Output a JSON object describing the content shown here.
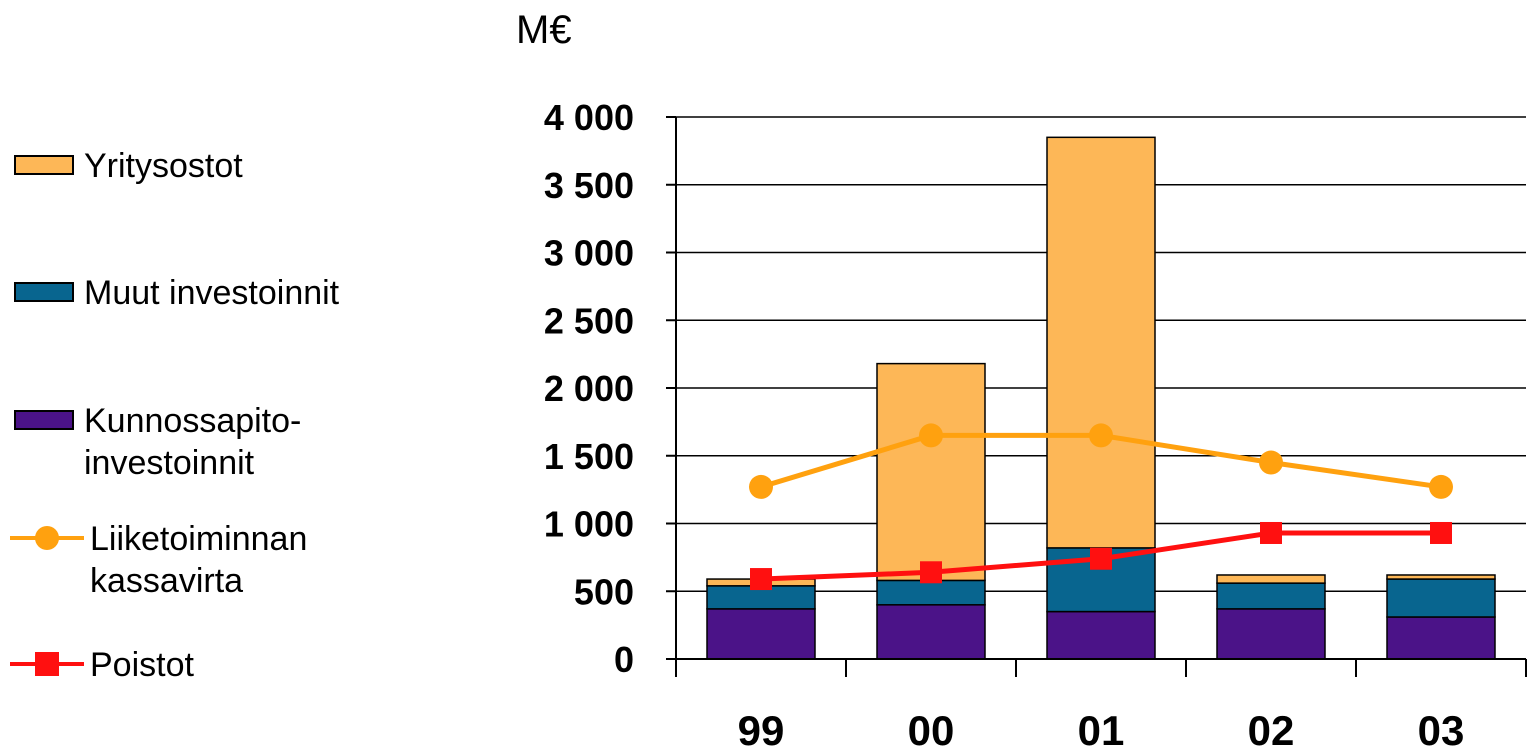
{
  "chart_data": {
    "type": "bar",
    "stacked": true,
    "unit_label": "M€",
    "categories": [
      "99",
      "00",
      "01",
      "02",
      "03"
    ],
    "ylim": [
      0,
      4000
    ],
    "yticks": [
      "0",
      "500",
      "1 000",
      "1 500",
      "2 000",
      "2 500",
      "3 000",
      "3 500",
      "4 000"
    ],
    "ytick_values": [
      0,
      500,
      1000,
      1500,
      2000,
      2500,
      3000,
      3500,
      4000
    ],
    "grid": true,
    "legend_position": "left",
    "series": [
      {
        "name": "Kunnossapito-\ninvestoinnit",
        "kind": "bar",
        "color": "#4b1388",
        "values": [
          370,
          400,
          350,
          370,
          310
        ]
      },
      {
        "name": "Muut investoinnit",
        "kind": "bar",
        "color": "#08658f",
        "values": [
          170,
          180,
          470,
          190,
          280
        ]
      },
      {
        "name": "Yritysostot",
        "kind": "bar",
        "color": "#fdb757",
        "values": [
          50,
          1600,
          3030,
          60,
          30
        ]
      },
      {
        "name": "Liiketoiminnan\nkassavirta",
        "kind": "line",
        "marker": "circle",
        "color": "#ffa10f",
        "values": [
          1270,
          1650,
          1650,
          1450,
          1270
        ]
      },
      {
        "name": "Poistot",
        "kind": "line",
        "marker": "square",
        "color": "#ff1010",
        "values": [
          590,
          640,
          740,
          930,
          930
        ]
      }
    ]
  },
  "legend_order": [
    2,
    1,
    0,
    3,
    4
  ]
}
